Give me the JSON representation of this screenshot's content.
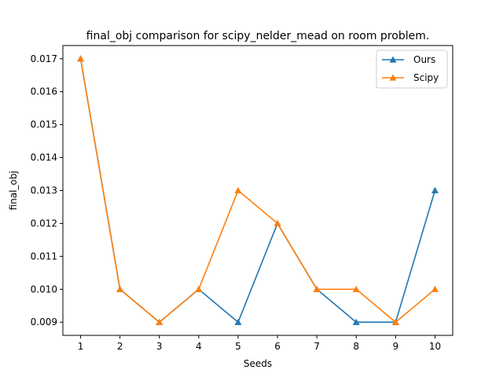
{
  "chart_data": {
    "type": "line",
    "title": "final_obj comparison for scipy_nelder_mead on room problem.",
    "xlabel": "Seeds",
    "ylabel": "final_obj",
    "x": [
      1,
      2,
      3,
      4,
      5,
      6,
      7,
      8,
      9,
      10
    ],
    "xticks": [
      "1",
      "2",
      "3",
      "4",
      "5",
      "6",
      "7",
      "8",
      "9",
      "10"
    ],
    "yticks": [
      "0.009",
      "0.010",
      "0.011",
      "0.012",
      "0.013",
      "0.014",
      "0.015",
      "0.016",
      "0.017"
    ],
    "xlim": [
      0.55,
      10.45
    ],
    "ylim": [
      0.0086,
      0.0174
    ],
    "grid": false,
    "legend": "top-right",
    "series": [
      {
        "name": "Ours",
        "color": "#1f77b4",
        "marker": "triangle",
        "values": [
          0.017,
          0.01,
          0.009,
          0.01,
          0.009,
          0.012,
          0.01,
          0.009,
          0.009,
          0.013
        ]
      },
      {
        "name": "Scipy",
        "color": "#ff7f0e",
        "marker": "triangle",
        "values": [
          0.017,
          0.01,
          0.009,
          0.01,
          0.013,
          0.012,
          0.01,
          0.01,
          0.009,
          0.01
        ]
      }
    ]
  }
}
